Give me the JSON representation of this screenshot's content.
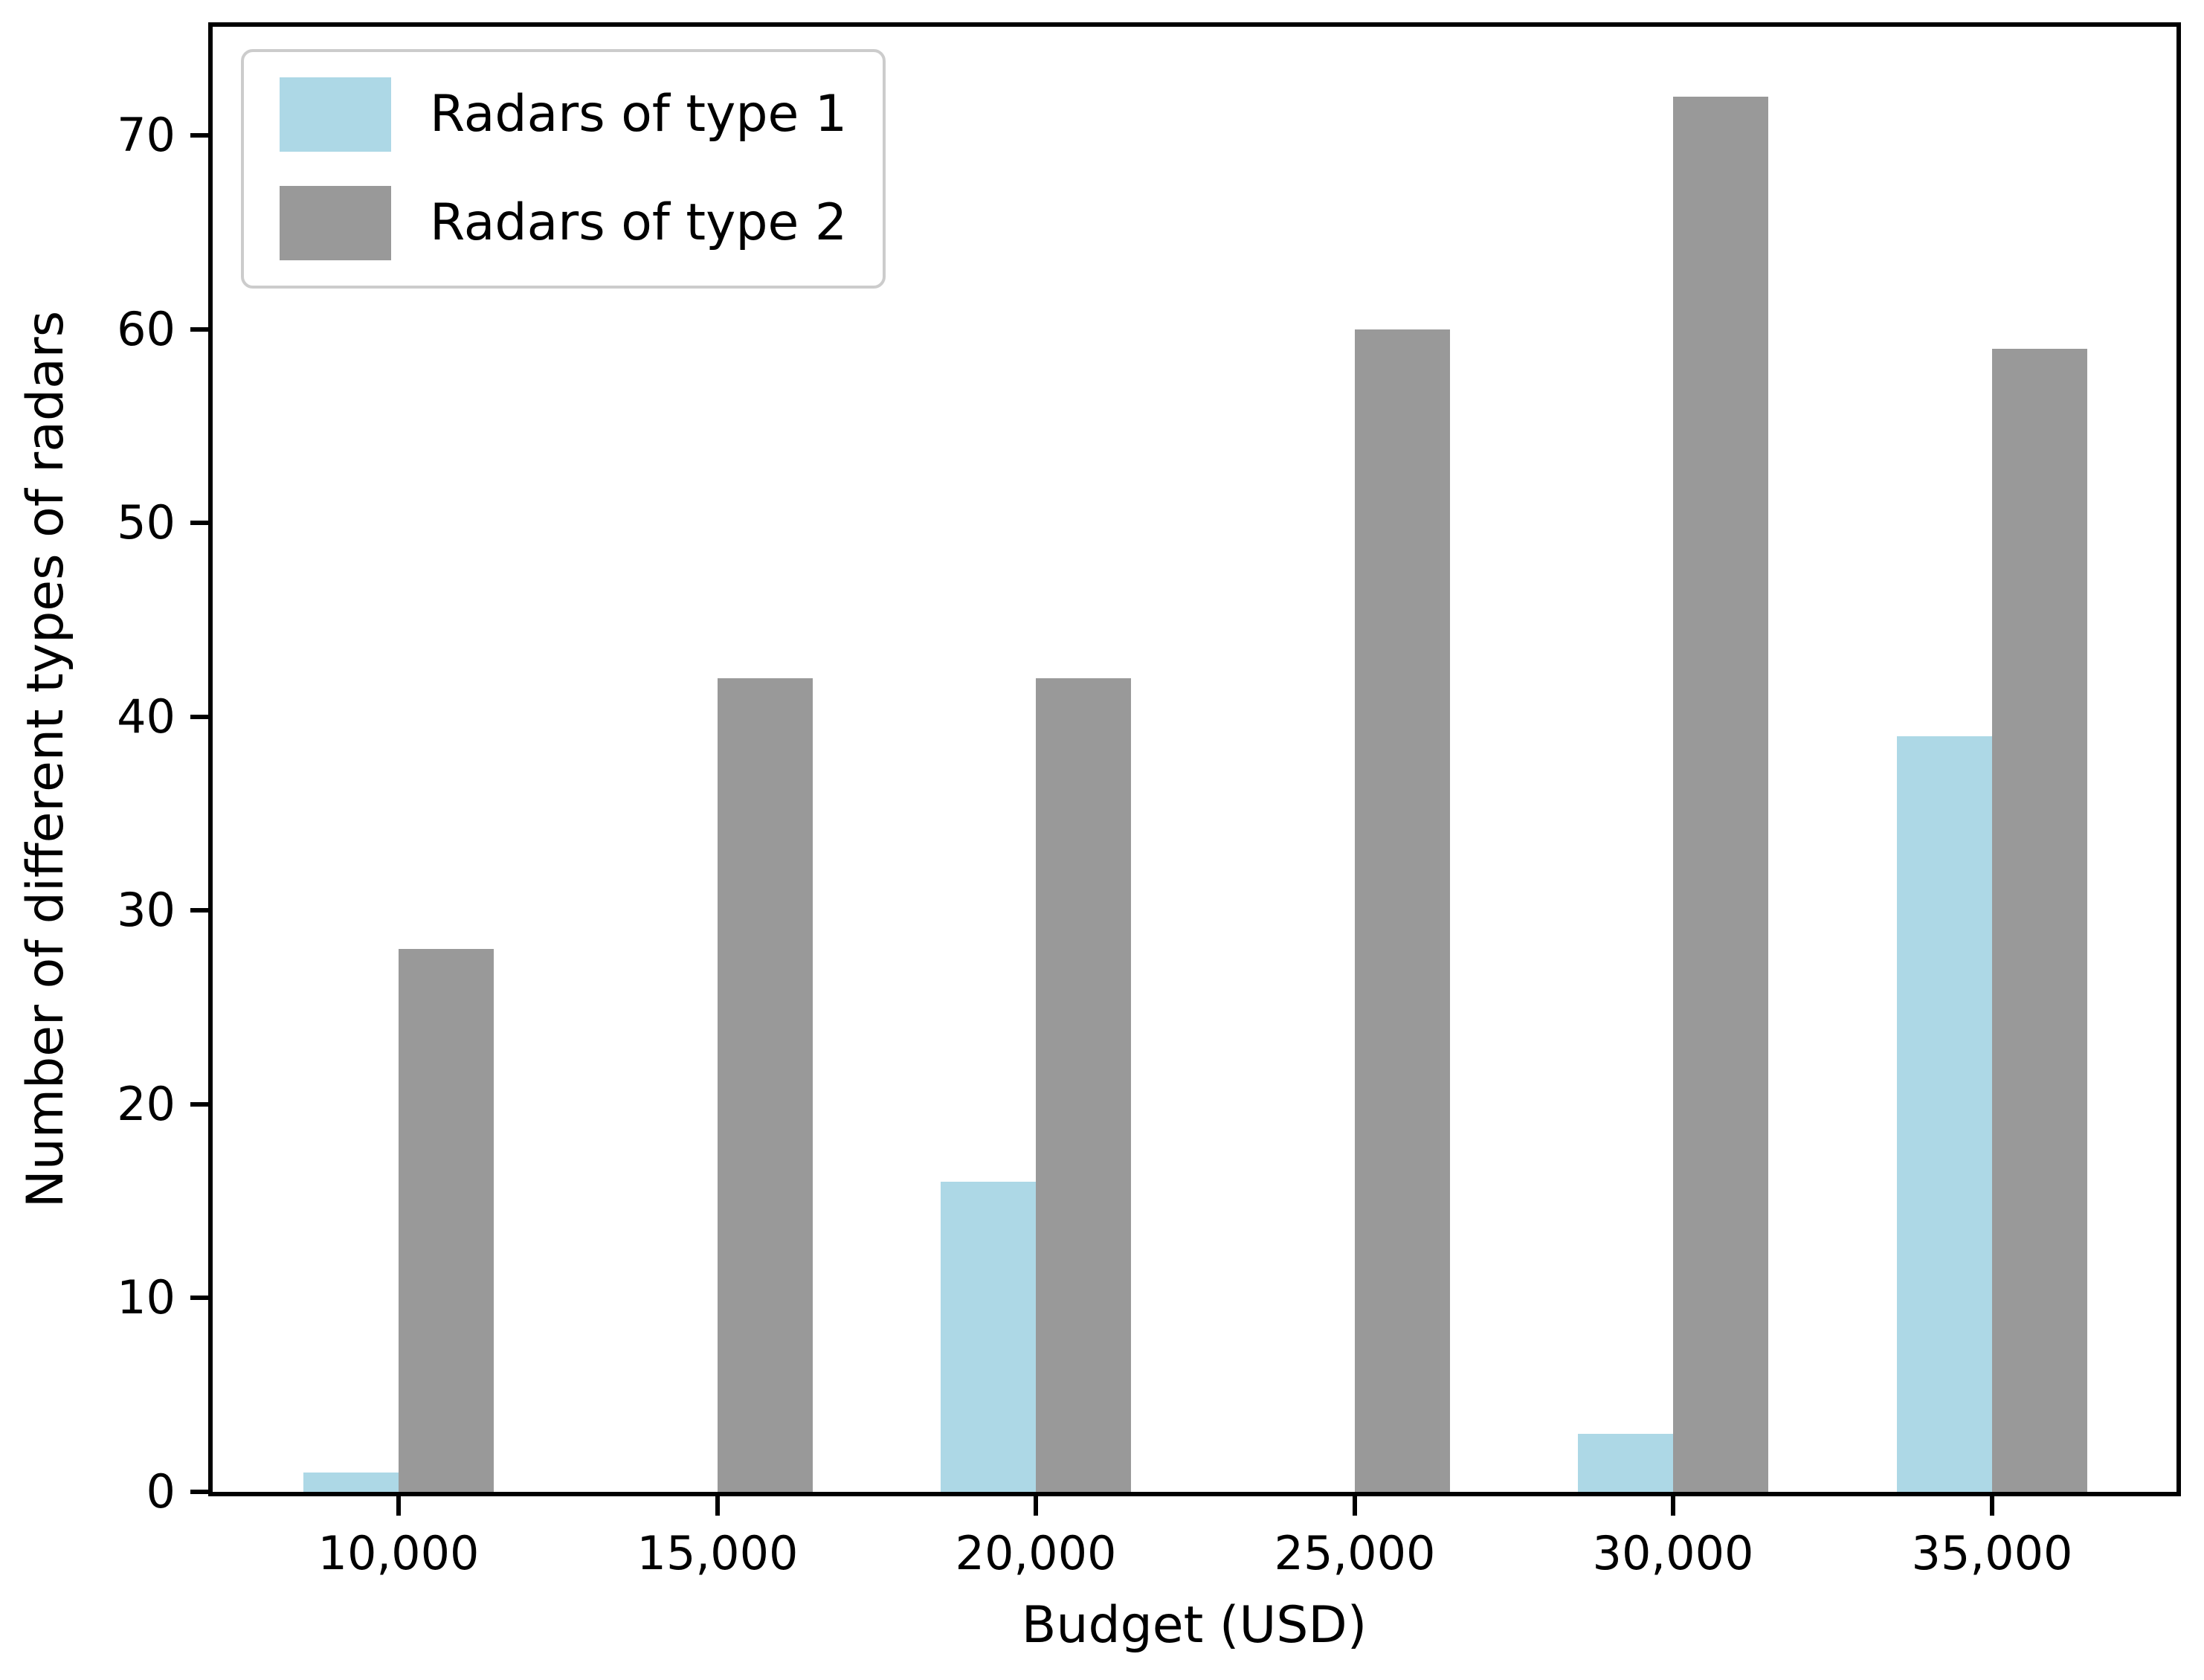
{
  "chart_data": {
    "type": "bar",
    "title": "",
    "xlabel": "Budget (USD)",
    "ylabel": "Number of different types of radars",
    "categories": [
      "10,000",
      "15,000",
      "20,000",
      "25,000",
      "30,000",
      "35,000"
    ],
    "series": [
      {
        "name": "Radars of type 1",
        "color": "#ADD8E6",
        "values": [
          1,
          0,
          16,
          0,
          3,
          39
        ]
      },
      {
        "name": "Radars of type 2",
        "color": "#999999",
        "values": [
          28,
          42,
          42,
          60,
          72,
          59
        ]
      }
    ],
    "ylim": [
      0,
      75.6
    ],
    "yticks": [
      "0",
      "10",
      "20",
      "30",
      "40",
      "50",
      "60",
      "70"
    ],
    "grid": false,
    "legend_position": "upper left",
    "axis_color": "#000000",
    "background_color": "#ffffff"
  }
}
